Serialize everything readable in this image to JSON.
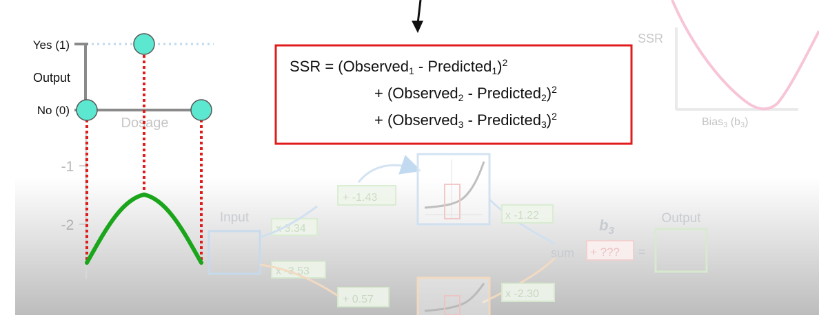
{
  "graph": {
    "yes_label": "Yes (1)",
    "no_label": "No (0)",
    "output_label": "Output",
    "x_axis_label": "Dosage",
    "y_tick_1": "-1",
    "y_tick_2": "-2"
  },
  "equation": {
    "line1": {
      "prefix": "SSR = (Observed",
      "sub_a": "1",
      "mid": " - Predicted",
      "sub_b": "1",
      "suffix": ")",
      "sup": "2"
    },
    "line2": {
      "prefix": "+ (Observed",
      "sub_a": "2",
      "mid": " - Predicted",
      "sub_b": "2",
      "suffix": ")",
      "sup": "2"
    },
    "line3": {
      "prefix": "+ (Observed",
      "sub_a": "3",
      "mid": " - Predicted",
      "sub_b": "3",
      "suffix": ")",
      "sup": "2"
    }
  },
  "ssr_plot": {
    "y_label": "SSR",
    "x_label_prefix": "Bias",
    "x_label_sub": "3",
    "x_label_paren": "(b",
    "x_label_paren_sub": "3",
    "x_label_close": ")"
  },
  "network": {
    "input_label": "Input",
    "w1": "x 3.34",
    "w2": "x -3.53",
    "b1": "+ -1.43",
    "b2": "+ 0.57",
    "w3": "x -1.22",
    "w4": "x -2.30",
    "sum_label": "sum",
    "b3_label": "b",
    "b3_sub": "3",
    "b3_value": "+ ???",
    "equals": "=",
    "output_label": "Output"
  },
  "colors": {
    "observed_point": "#5ce8d0",
    "fit_curve": "#1aa51a",
    "dotted_residual": "#e01c1c",
    "equation_border": "#e01c1c",
    "ssr_curve": "#f7c4d8"
  }
}
